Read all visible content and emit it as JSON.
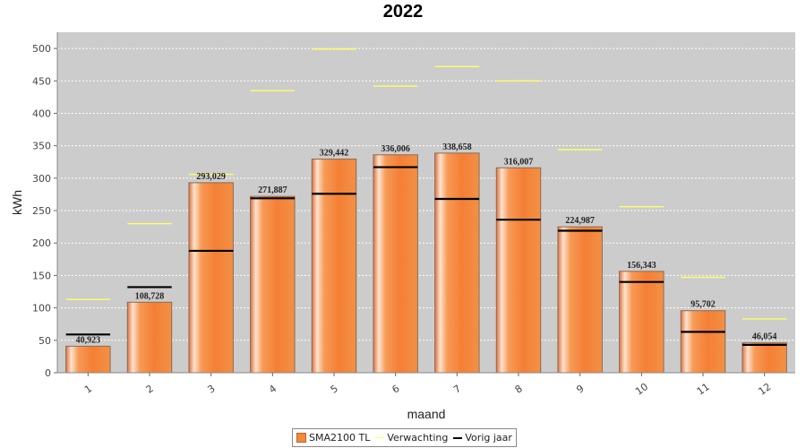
{
  "chart_data": {
    "type": "bar",
    "title": "2022",
    "xlabel": "maand",
    "ylabel": "kWh",
    "ylim": [
      0,
      525
    ],
    "yticks": [
      0,
      50,
      100,
      150,
      200,
      250,
      300,
      350,
      400,
      450,
      500
    ],
    "grid": true,
    "legend_position": "bottom",
    "categories": [
      "1",
      "2",
      "3",
      "4",
      "5",
      "6",
      "7",
      "8",
      "9",
      "10",
      "11",
      "12"
    ],
    "series": [
      {
        "name": "SMA2100 TL",
        "kind": "bar",
        "color": "#f08a3c",
        "values": [
          40.923,
          108.728,
          293.029,
          271.887,
          329.442,
          336.006,
          338.658,
          316.007,
          224.987,
          156.343,
          95.702,
          46.054
        ],
        "labels": [
          "40,923",
          "108,728",
          "293,029",
          "271,887",
          "329,442",
          "336,006",
          "338,658",
          "316,007",
          "224,987",
          "156,343",
          "95,702",
          "46,054"
        ]
      },
      {
        "name": "Verwachting",
        "kind": "marker",
        "color": "#ffff66",
        "values": [
          113,
          230,
          306,
          435,
          499,
          442,
          472,
          450,
          344,
          256,
          147,
          83
        ]
      },
      {
        "name": "Vorig jaar",
        "kind": "marker",
        "color": "#000000",
        "values": [
          59,
          132,
          188,
          269,
          276,
          317,
          268,
          236,
          219,
          140,
          63,
          43
        ]
      }
    ]
  }
}
